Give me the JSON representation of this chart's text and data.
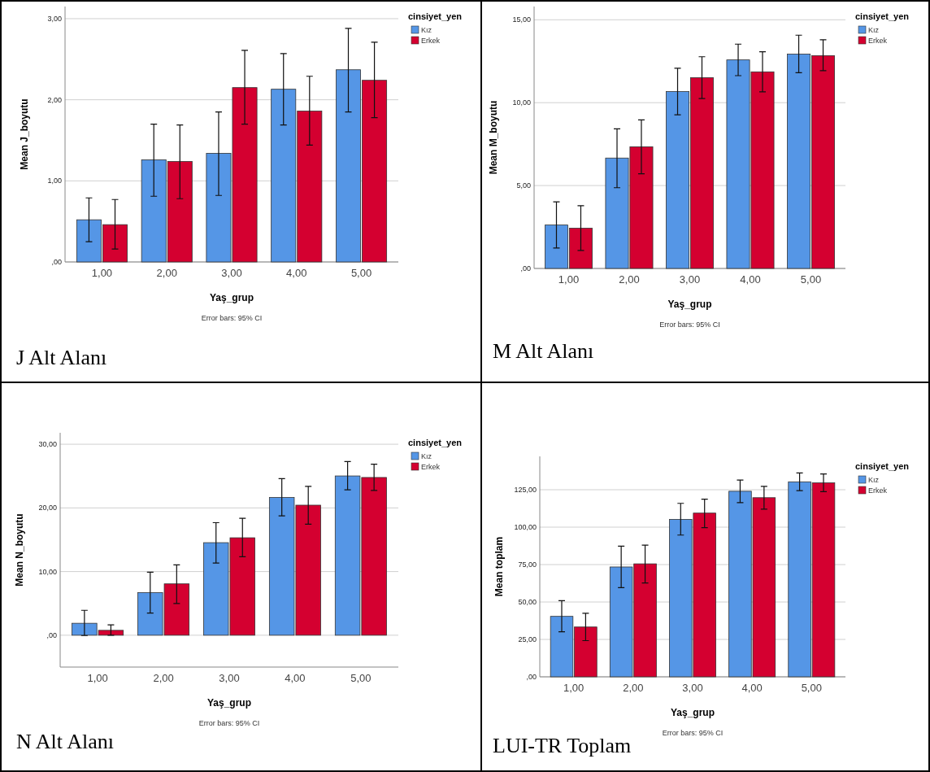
{
  "chart_data": [
    {
      "type": "bar",
      "title": "J Alt Alanı",
      "xlabel": "Yaş_grup",
      "ylabel": "Mean J_boyutu",
      "legend_title": "cinsiyet_yen",
      "legend": "top right",
      "grid": "y",
      "annotations": [
        "Error bars: 95% CI"
      ],
      "categories": [
        "1,00",
        "2,00",
        "3,00",
        "4,00",
        "5,00"
      ],
      "ylim": [
        0,
        3.15
      ],
      "yticks": [
        {
          "value": 0,
          "label": ",00"
        },
        {
          "value": 1,
          "label": "1,00"
        },
        {
          "value": 2,
          "label": "2,00"
        },
        {
          "value": 3,
          "label": "3,00"
        }
      ],
      "series": [
        {
          "name": "Kız",
          "color": "#5596e6",
          "values": [
            0.52,
            1.26,
            1.34,
            2.13,
            2.37
          ],
          "errors": [
            [
              0.25,
              0.79
            ],
            [
              0.81,
              1.7
            ],
            [
              0.82,
              1.85
            ],
            [
              1.69,
              2.57
            ],
            [
              1.85,
              2.88
            ]
          ]
        },
        {
          "name": "Erkek",
          "color": "#d40030",
          "values": [
            0.46,
            1.24,
            2.15,
            1.86,
            2.24
          ],
          "errors": [
            [
              0.16,
              0.77
            ],
            [
              0.78,
              1.69
            ],
            [
              1.7,
              2.61
            ],
            [
              1.44,
              2.29
            ],
            [
              1.78,
              2.71
            ]
          ]
        }
      ]
    },
    {
      "type": "bar",
      "title": "M Alt Alanı",
      "xlabel": "Yaş_grup",
      "ylabel": "Mean M_boyutu",
      "legend_title": "cinsiyet_yen",
      "legend": "top right",
      "grid": "y",
      "annotations": [
        "Error bars: 95% CI"
      ],
      "categories": [
        "1,00",
        "2,00",
        "3,00",
        "4,00",
        "5,00"
      ],
      "ylim": [
        0,
        15.8
      ],
      "yticks": [
        {
          "value": 0,
          "label": ",00"
        },
        {
          "value": 5,
          "label": "5,00"
        },
        {
          "value": 10,
          "label": "10,00"
        },
        {
          "value": 15,
          "label": "15,00"
        }
      ],
      "series": [
        {
          "name": "Kız",
          "color": "#5596e6",
          "values": [
            2.62,
            6.66,
            10.67,
            12.58,
            12.93
          ],
          "errors": [
            [
              1.23,
              4.02
            ],
            [
              4.87,
              8.42
            ],
            [
              9.27,
              12.08
            ],
            [
              11.63,
              13.53
            ],
            [
              11.81,
              14.07
            ]
          ]
        },
        {
          "name": "Erkek",
          "color": "#d40030",
          "values": [
            2.43,
            7.34,
            11.51,
            11.86,
            12.84
          ],
          "errors": [
            [
              1.09,
              3.78
            ],
            [
              5.71,
              8.96
            ],
            [
              10.25,
              12.77
            ],
            [
              10.65,
              13.07
            ],
            [
              11.93,
              13.79
            ]
          ]
        }
      ]
    },
    {
      "type": "bar",
      "title": "N Alt Alanı",
      "xlabel": "Yaş_grup",
      "ylabel": "Mean N_boyutu",
      "legend_title": "cinsiyet_yen",
      "legend": "top right",
      "grid": "y",
      "annotations": [
        "Error bars: 95% CI"
      ],
      "categories": [
        "1,00",
        "2,00",
        "3,00",
        "4,00",
        "5,00"
      ],
      "ylim": [
        -5,
        31.8
      ],
      "yticks": [
        {
          "value": 0,
          "label": ",00"
        },
        {
          "value": 10,
          "label": "10,00"
        },
        {
          "value": 20,
          "label": "20,00"
        },
        {
          "value": 30,
          "label": "30,00"
        }
      ],
      "series": [
        {
          "name": "Kız",
          "color": "#5596e6",
          "values": [
            1.88,
            6.71,
            14.54,
            21.64,
            25.02
          ],
          "errors": [
            [
              -0.05,
              3.91
            ],
            [
              3.48,
              9.9
            ],
            [
              11.35,
              17.68
            ],
            [
              18.74,
              24.59
            ],
            [
              22.85,
              27.29
            ]
          ]
        },
        {
          "name": "Erkek",
          "color": "#d40030",
          "values": [
            0.77,
            8.07,
            15.31,
            20.43,
            24.78
          ],
          "errors": [
            [
              0,
              1.64
            ],
            [
              4.98,
              11.06
            ],
            [
              12.32,
              18.36
            ],
            [
              17.44,
              23.38
            ],
            [
              22.75,
              26.86
            ]
          ]
        }
      ]
    },
    {
      "type": "bar",
      "title": "LUI-TR Toplam",
      "xlabel": "Yaş_grup",
      "ylabel": "Mean toplam",
      "legend_title": "cinsiyet_yen",
      "legend": "top right",
      "grid": "y",
      "annotations": [
        "Error bars: 95% CI"
      ],
      "categories": [
        "1,00",
        "2,00",
        "3,00",
        "4,00",
        "5,00"
      ],
      "ylim": [
        0,
        147.3
      ],
      "yticks": [
        {
          "value": 0,
          "label": ",00"
        },
        {
          "value": 25,
          "label": "25,00"
        },
        {
          "value": 50,
          "label": "50,00"
        },
        {
          "value": 75,
          "label": "75,00"
        },
        {
          "value": 100,
          "label": "100,00"
        },
        {
          "value": 125,
          "label": "125,00"
        }
      ],
      "series": [
        {
          "name": "Kız",
          "color": "#5596e6",
          "values": [
            40.4,
            73.4,
            105.2,
            124.0,
            130.3
          ],
          "errors": [
            [
              30.1,
              50.9
            ],
            [
              59.6,
              87.3
            ],
            [
              94.7,
              115.9
            ],
            [
              116.4,
              131.5
            ],
            [
              124.4,
              136.2
            ]
          ]
        },
        {
          "name": "Erkek",
          "color": "#d40030",
          "values": [
            33.3,
            75.5,
            109.4,
            119.7,
            129.6
          ],
          "errors": [
            [
              24.2,
              42.5
            ],
            [
              62.7,
              88.0
            ],
            [
              99.7,
              118.7
            ],
            [
              112.0,
              127.3
            ],
            [
              123.7,
              135.5
            ]
          ]
        }
      ]
    }
  ]
}
